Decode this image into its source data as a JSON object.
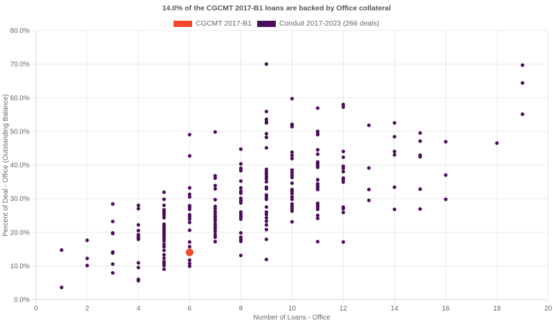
{
  "chart_data": {
    "type": "scatter",
    "title": "14.0% of the CGCMT 2017-B1 loans are backed by Office collateral",
    "xlabel": "Number of Loans - Office",
    "ylabel": "Percent of Deal - Office (Outstanding Balance)",
    "xlim": [
      0,
      20
    ],
    "ylim": [
      0,
      80
    ],
    "x_ticks": [
      "0",
      "2",
      "4",
      "6",
      "8",
      "10",
      "12",
      "14",
      "16",
      "18",
      "20"
    ],
    "y_ticks": [
      "0.0%",
      "10.0%",
      "20.0%",
      "30.0%",
      "40.0%",
      "50.0%",
      "60.0%",
      "70.0%",
      "80.0%"
    ],
    "grid": true,
    "legend_position": "top",
    "series": [
      {
        "name": "CGCMT 2017-B1",
        "color": "#F4472B",
        "points": [
          [
            6,
            14.0
          ]
        ]
      },
      {
        "name": "Conduit 2017-2023 (266 deals)",
        "color": "#4A0D5A",
        "points": [
          [
            1,
            14.7
          ],
          [
            1,
            3.6
          ],
          [
            2,
            17.6
          ],
          [
            2,
            12.2
          ],
          [
            2,
            10.1
          ],
          [
            3,
            28.4
          ],
          [
            3,
            23.2
          ],
          [
            3,
            19.8
          ],
          [
            3,
            19.6
          ],
          [
            3,
            14.1
          ],
          [
            3,
            13.8
          ],
          [
            3,
            10.5
          ],
          [
            3,
            7.9
          ],
          [
            4,
            28.0
          ],
          [
            4,
            27.0
          ],
          [
            4,
            22.2
          ],
          [
            4,
            20.5
          ],
          [
            4,
            19.3
          ],
          [
            4,
            18.8
          ],
          [
            4,
            18.3
          ],
          [
            4,
            17.9
          ],
          [
            4,
            10.9
          ],
          [
            4,
            9.5
          ],
          [
            4,
            6.0
          ],
          [
            4,
            5.6
          ],
          [
            5,
            31.9
          ],
          [
            5,
            29.8
          ],
          [
            5,
            28.0
          ],
          [
            5,
            26.7
          ],
          [
            5,
            26.1
          ],
          [
            5,
            25.6
          ],
          [
            5,
            25.0
          ],
          [
            5,
            24.3
          ],
          [
            5,
            22.4
          ],
          [
            5,
            21.9
          ],
          [
            5,
            21.3
          ],
          [
            5,
            20.8
          ],
          [
            5,
            20.2
          ],
          [
            5,
            19.7
          ],
          [
            5,
            19.1
          ],
          [
            5,
            18.6
          ],
          [
            5,
            18.0
          ],
          [
            5,
            17.4
          ],
          [
            5,
            16.4
          ],
          [
            5,
            15.7
          ],
          [
            5,
            14.6
          ],
          [
            5,
            13.3
          ],
          [
            5,
            12.3
          ],
          [
            5,
            11.3
          ],
          [
            5,
            10.7
          ],
          [
            5,
            10.1
          ],
          [
            5,
            9.0
          ],
          [
            6,
            49.0
          ],
          [
            6,
            42.7
          ],
          [
            6,
            33.2
          ],
          [
            6,
            31.3
          ],
          [
            6,
            30.5
          ],
          [
            6,
            27.9
          ],
          [
            6,
            27.4
          ],
          [
            6,
            26.8
          ],
          [
            6,
            25.2
          ],
          [
            6,
            24.6
          ],
          [
            6,
            23.9
          ],
          [
            6,
            22.9
          ],
          [
            6,
            20.6
          ],
          [
            6,
            17.1
          ],
          [
            6,
            15.7
          ],
          [
            6,
            11.7
          ],
          [
            6,
            10.7
          ],
          [
            6,
            9.9
          ],
          [
            7,
            49.8
          ],
          [
            7,
            36.8
          ],
          [
            7,
            36.1
          ],
          [
            7,
            33.9
          ],
          [
            7,
            32.9
          ],
          [
            7,
            29.7
          ],
          [
            7,
            27.7
          ],
          [
            7,
            27.0
          ],
          [
            7,
            26.1
          ],
          [
            7,
            25.3
          ],
          [
            7,
            24.6
          ],
          [
            7,
            23.9
          ],
          [
            7,
            23.3
          ],
          [
            7,
            22.4
          ],
          [
            7,
            21.7
          ],
          [
            7,
            21.0
          ],
          [
            7,
            20.2
          ],
          [
            7,
            19.3
          ],
          [
            7,
            18.5
          ],
          [
            7,
            17.2
          ],
          [
            8,
            44.7
          ],
          [
            8,
            40.3
          ],
          [
            8,
            39.0
          ],
          [
            8,
            38.3
          ],
          [
            8,
            35.2
          ],
          [
            8,
            33.2
          ],
          [
            8,
            32.2
          ],
          [
            8,
            31.6
          ],
          [
            8,
            30.1
          ],
          [
            8,
            29.4
          ],
          [
            8,
            28.7
          ],
          [
            8,
            26.0
          ],
          [
            8,
            25.3
          ],
          [
            8,
            24.6
          ],
          [
            8,
            23.9
          ],
          [
            8,
            19.8
          ],
          [
            8,
            18.5
          ],
          [
            8,
            17.9
          ],
          [
            8,
            17.3
          ],
          [
            8,
            13.1
          ],
          [
            9,
            70.0
          ],
          [
            9,
            55.9
          ],
          [
            9,
            53.6
          ],
          [
            9,
            52.9
          ],
          [
            9,
            52.5
          ],
          [
            9,
            49.3
          ],
          [
            9,
            48.2
          ],
          [
            9,
            45.1
          ],
          [
            9,
            38.7
          ],
          [
            9,
            38.0
          ],
          [
            9,
            37.3
          ],
          [
            9,
            36.6
          ],
          [
            9,
            35.9
          ],
          [
            9,
            35.0
          ],
          [
            9,
            33.4
          ],
          [
            9,
            32.9
          ],
          [
            9,
            31.1
          ],
          [
            9,
            30.5
          ],
          [
            9,
            29.8
          ],
          [
            9,
            27.5
          ],
          [
            9,
            26.0
          ],
          [
            9,
            25.3
          ],
          [
            9,
            24.3
          ],
          [
            9,
            23.3
          ],
          [
            9,
            22.2
          ],
          [
            9,
            20.8
          ],
          [
            9,
            17.9
          ],
          [
            9,
            11.9
          ],
          [
            10,
            59.7
          ],
          [
            10,
            52.1
          ],
          [
            10,
            51.7
          ],
          [
            10,
            51.4
          ],
          [
            10,
            43.8
          ],
          [
            10,
            42.8
          ],
          [
            10,
            41.9
          ],
          [
            10,
            38.5
          ],
          [
            10,
            37.8
          ],
          [
            10,
            37.0
          ],
          [
            10,
            36.3
          ],
          [
            10,
            34.6
          ],
          [
            10,
            32.7
          ],
          [
            10,
            32.2
          ],
          [
            10,
            31.5
          ],
          [
            10,
            30.5
          ],
          [
            10,
            29.8
          ],
          [
            10,
            28.4
          ],
          [
            10,
            27.7
          ],
          [
            10,
            27.0
          ],
          [
            10,
            26.3
          ],
          [
            10,
            23.1
          ],
          [
            11,
            56.9
          ],
          [
            11,
            50.0
          ],
          [
            11,
            49.4
          ],
          [
            11,
            49.0
          ],
          [
            11,
            44.5
          ],
          [
            11,
            43.2
          ],
          [
            11,
            40.9
          ],
          [
            11,
            40.4
          ],
          [
            11,
            39.8
          ],
          [
            11,
            39.3
          ],
          [
            11,
            35.6
          ],
          [
            11,
            34.4
          ],
          [
            11,
            33.8
          ],
          [
            11,
            33.2
          ],
          [
            11,
            32.7
          ],
          [
            11,
            28.6
          ],
          [
            11,
            28.0
          ],
          [
            11,
            27.5
          ],
          [
            11,
            26.8
          ],
          [
            11,
            25.0
          ],
          [
            11,
            24.1
          ],
          [
            11,
            17.2
          ],
          [
            12,
            58.0
          ],
          [
            12,
            57.2
          ],
          [
            12,
            44.0
          ],
          [
            12,
            42.3
          ],
          [
            12,
            39.6
          ],
          [
            12,
            39.0
          ],
          [
            12,
            38.0
          ],
          [
            12,
            36.1
          ],
          [
            12,
            35.6
          ],
          [
            12,
            34.9
          ],
          [
            12,
            27.5
          ],
          [
            12,
            27.0
          ],
          [
            12,
            25.9
          ],
          [
            12,
            17.1
          ],
          [
            13,
            51.8
          ],
          [
            13,
            39.1
          ],
          [
            13,
            32.7
          ],
          [
            13,
            29.5
          ],
          [
            14,
            52.5
          ],
          [
            14,
            48.4
          ],
          [
            14,
            44.0
          ],
          [
            14,
            43.0
          ],
          [
            14,
            33.4
          ],
          [
            14,
            26.8
          ],
          [
            15,
            49.5
          ],
          [
            15,
            47.1
          ],
          [
            15,
            42.9
          ],
          [
            15,
            42.4
          ],
          [
            15,
            32.8
          ],
          [
            15,
            26.9
          ],
          [
            16,
            46.9
          ],
          [
            16,
            37.0
          ],
          [
            16,
            29.8
          ],
          [
            18,
            46.5
          ],
          [
            19,
            69.7
          ],
          [
            19,
            64.4
          ],
          [
            19,
            55.1
          ]
        ]
      }
    ]
  },
  "legend": {
    "items": [
      {
        "label": "CGCMT 2017-B1",
        "color": "#F4472B"
      },
      {
        "label": "Conduit 2017-2023 (266 deals)",
        "color": "#4A0D5A"
      }
    ]
  }
}
